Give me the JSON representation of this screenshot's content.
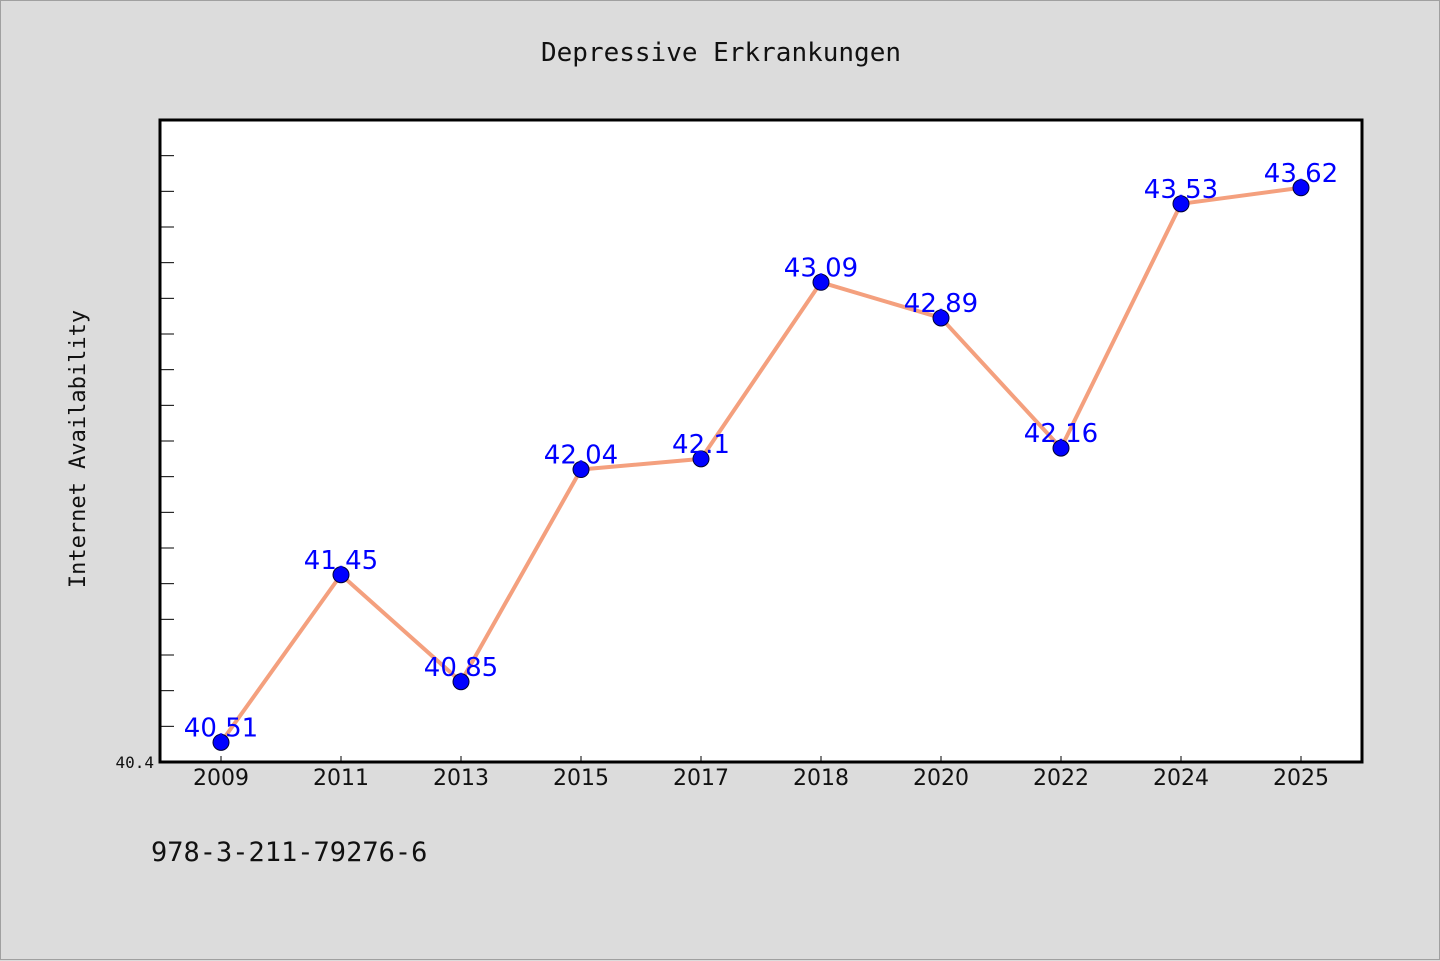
{
  "chart_data": {
    "type": "line",
    "title": "Depressive Erkrankungen",
    "ylabel": "Internet Availability",
    "xlabel": "",
    "categories": [
      "2009",
      "2011",
      "2013",
      "2015",
      "2017",
      "2018",
      "2020",
      "2022",
      "2024",
      "2025"
    ],
    "values": [
      40.51,
      41.45,
      40.85,
      42.04,
      42.1,
      43.09,
      42.89,
      42.16,
      43.53,
      43.62
    ],
    "data_labels": [
      "40.51",
      "41.45",
      "40.85",
      "42.04",
      "42.1",
      "43.09",
      "42.89",
      "42.16",
      "43.53",
      "43.62"
    ],
    "y_tick_labels": [
      "40.4"
    ],
    "ylim": [
      40.4,
      44.0
    ],
    "grid": false,
    "line_color": "#f4a07e",
    "marker_color": "#0000ff",
    "label_color": "#0000ff"
  },
  "footer": {
    "isbn": "978-3-211-79276-6"
  }
}
